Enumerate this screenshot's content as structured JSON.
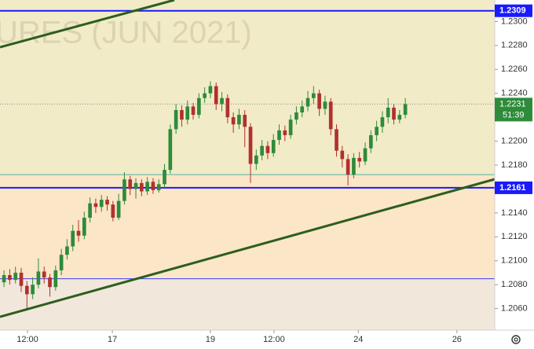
{
  "chart_data": {
    "type": "candlestick",
    "watermark": "URES (JUN 2021)",
    "xlim": [
      -0.7,
      85.6
    ],
    "xticks": [
      {
        "value": 4.1,
        "label": "12:00"
      },
      {
        "value": 18.9,
        "label": "17"
      },
      {
        "value": 36,
        "label": "19"
      },
      {
        "value": 47.1,
        "label": "12:00"
      },
      {
        "value": 61.8,
        "label": "24"
      },
      {
        "value": 79,
        "label": "26"
      }
    ],
    "ylim": [
      1.2042,
      1.2318
    ],
    "yticks": [
      {
        "value": 1.206,
        "label": "1.2060"
      },
      {
        "value": 1.208,
        "label": "1.2080"
      },
      {
        "value": 1.21,
        "label": "1.2100"
      },
      {
        "value": 1.212,
        "label": "1.2120"
      },
      {
        "value": 1.214,
        "label": "1.2140"
      },
      {
        "value": 1.216,
        "label": "1.2160"
      },
      {
        "value": 1.218,
        "label": "1.2180"
      },
      {
        "value": 1.22,
        "label": "1.2200"
      },
      {
        "value": 1.222,
        "label": "1.2220"
      },
      {
        "value": 1.224,
        "label": "1.2240"
      },
      {
        "value": 1.226,
        "label": "1.2260"
      },
      {
        "value": 1.228,
        "label": "1.2280"
      },
      {
        "value": 1.23,
        "label": "1.2300"
      }
    ],
    "up_color": "#2e8b3a",
    "down_color": "#b0312f",
    "open": [
      1.2082,
      1.2088,
      1.2084,
      1.209,
      1.2079,
      1.2072,
      1.208,
      1.2091,
      1.2086,
      1.2078,
      1.2092,
      1.2105,
      1.2112,
      1.2125,
      1.2121,
      1.2136,
      1.2148,
      1.2145,
      1.2151,
      1.2147,
      1.2136,
      1.215,
      1.2168,
      1.216,
      1.2165,
      1.2158,
      1.2166,
      1.2159,
      1.2164,
      1.2176,
      1.221,
      1.2226,
      1.2218,
      1.2229,
      1.2222,
      1.2236,
      1.224,
      1.2246,
      1.2231,
      1.2236,
      1.222,
      1.2214,
      1.2222,
      1.2212,
      1.2181,
      1.2188,
      1.2196,
      1.219,
      1.2201,
      1.2209,
      1.2205,
      1.2218,
      1.2224,
      1.2229,
      1.2236,
      1.224,
      1.2227,
      1.2233,
      1.221,
      1.2192,
      1.2185,
      1.2172,
      1.2186,
      1.2183,
      1.2194,
      1.2205,
      1.2212,
      1.222,
      1.2228,
      1.2218,
      1.2222
    ],
    "close": [
      1.2088,
      1.2084,
      1.209,
      1.2079,
      1.2072,
      1.208,
      1.2091,
      1.2086,
      1.2078,
      1.2092,
      1.2105,
      1.2112,
      1.2125,
      1.2121,
      1.2136,
      1.2148,
      1.2145,
      1.2151,
      1.2147,
      1.2136,
      1.215,
      1.2168,
      1.216,
      1.2165,
      1.2158,
      1.2166,
      1.2159,
      1.2164,
      1.2176,
      1.221,
      1.2226,
      1.2218,
      1.2229,
      1.2222,
      1.2236,
      1.224,
      1.2246,
      1.2231,
      1.2236,
      1.222,
      1.2214,
      1.2222,
      1.2212,
      1.2181,
      1.2188,
      1.2196,
      1.219,
      1.2201,
      1.2209,
      1.2205,
      1.2218,
      1.2224,
      1.2229,
      1.2236,
      1.224,
      1.2227,
      1.2233,
      1.221,
      1.2192,
      1.2185,
      1.2172,
      1.2186,
      1.2183,
      1.2194,
      1.2205,
      1.2212,
      1.222,
      1.2228,
      1.2218,
      1.2222,
      1.2231
    ],
    "high": [
      1.2092,
      1.2093,
      1.2095,
      1.2094,
      1.2083,
      1.2086,
      1.2102,
      1.2095,
      1.2089,
      1.2096,
      1.211,
      1.2118,
      1.213,
      1.2134,
      1.2141,
      1.2153,
      1.2152,
      1.2155,
      1.2154,
      1.215,
      1.2156,
      1.2174,
      1.2171,
      1.2169,
      1.2168,
      1.217,
      1.2169,
      1.2168,
      1.2181,
      1.2214,
      1.2231,
      1.223,
      1.2234,
      1.2232,
      1.224,
      1.2245,
      1.225,
      1.2249,
      1.2241,
      1.2239,
      1.2224,
      1.2227,
      1.2226,
      1.2215,
      1.2193,
      1.2201,
      1.22,
      1.2206,
      1.2214,
      1.2213,
      1.2222,
      1.2229,
      1.2234,
      1.2242,
      1.2246,
      1.2243,
      1.2238,
      1.2236,
      1.2214,
      1.2196,
      1.2189,
      1.219,
      1.2191,
      1.2199,
      1.2209,
      1.2217,
      1.2225,
      1.2236,
      1.2231,
      1.2226,
      1.2236
    ],
    "low": [
      1.2078,
      1.208,
      1.2081,
      1.2074,
      1.206,
      1.2068,
      1.2077,
      1.2081,
      1.207,
      1.2075,
      1.2088,
      1.2101,
      1.2108,
      1.2116,
      1.2118,
      1.2132,
      1.214,
      1.2141,
      1.2142,
      1.2133,
      1.2134,
      1.2147,
      1.2155,
      1.2152,
      1.2154,
      1.2155,
      1.2156,
      1.2157,
      1.2161,
      1.2173,
      1.2206,
      1.2212,
      1.2214,
      1.2218,
      1.2219,
      1.2232,
      1.2236,
      1.2226,
      1.2225,
      1.2215,
      1.2207,
      1.221,
      1.2195,
      1.2165,
      1.2176,
      1.2184,
      1.2185,
      1.2187,
      1.2197,
      1.22,
      1.2202,
      1.2214,
      1.222,
      1.2225,
      1.2231,
      1.2221,
      1.2222,
      1.2205,
      1.2187,
      1.2178,
      1.2163,
      1.2169,
      1.2178,
      1.218,
      1.219,
      1.22,
      1.2207,
      1.2215,
      1.2214,
      1.2215,
      1.2219
    ],
    "price_lines": [
      {
        "value": 1.2309,
        "color": "#1a1aff",
        "labeled": true
      },
      {
        "value": 1.2161,
        "color": "#1a1aff",
        "labeled": true
      },
      {
        "value": 1.2172,
        "color": "#4fb3a0",
        "labeled": false
      },
      {
        "value": 1.2085,
        "color": "#3a3aff",
        "labeled": false
      }
    ],
    "last_price": {
      "value": 1.2231,
      "countdown": "51:39",
      "color": "#2e8b3a"
    }
  }
}
